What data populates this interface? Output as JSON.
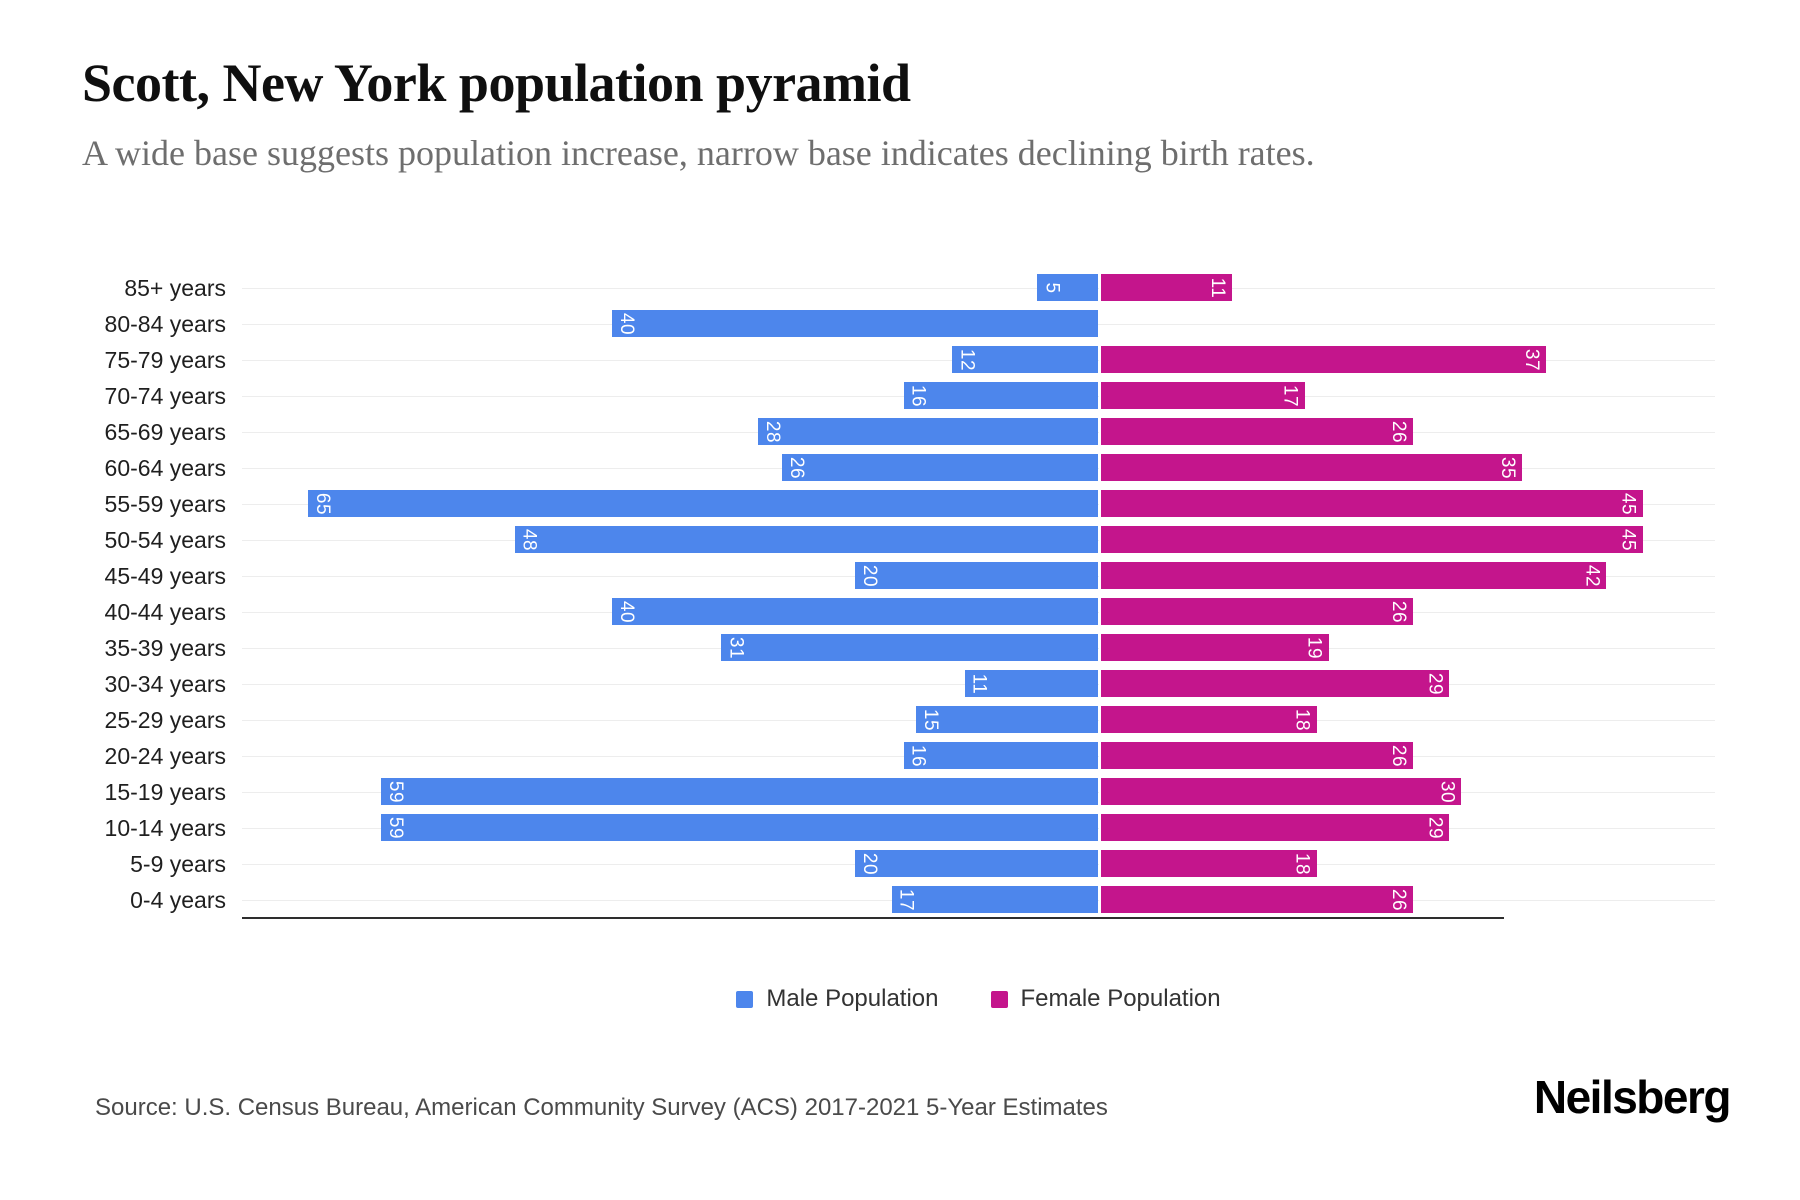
{
  "header": {
    "title": "Scott, New York population pyramid",
    "subtitle": "A wide base suggests population increase, narrow base indicates declining birth rates."
  },
  "colors": {
    "male": "#4d86ec",
    "female": "#c4158c",
    "grid": "#ededed",
    "axis": "#2e2e2e"
  },
  "chart_data": {
    "type": "bar",
    "orientation": "population-pyramid-horizontal",
    "title": "Scott, New York population pyramid",
    "categories": [
      "85+ years",
      "80-84 years",
      "75-79 years",
      "70-74 years",
      "65-69 years",
      "60-64 years",
      "55-59 years",
      "50-54 years",
      "45-49 years",
      "40-44 years",
      "35-39 years",
      "30-34 years",
      "25-29 years",
      "20-24 years",
      "15-19 years",
      "10-14 years",
      "5-9 years",
      "0-4 years"
    ],
    "series": [
      {
        "name": "Male Population",
        "color": "#4d86ec",
        "values": [
          5,
          40,
          12,
          16,
          28,
          26,
          65,
          48,
          20,
          40,
          31,
          11,
          15,
          16,
          59,
          59,
          20,
          17
        ]
      },
      {
        "name": "Female Population",
        "color": "#c4158c",
        "values": [
          11,
          0,
          37,
          17,
          26,
          35,
          45,
          45,
          42,
          26,
          19,
          29,
          18,
          26,
          30,
          29,
          18,
          26
        ]
      }
    ],
    "male_axis_max": 70.5,
    "female_axis_max": 51,
    "grid": true,
    "legend_position": "bottom",
    "value_labels": "inside-bar-ends, rotated 90deg, white"
  },
  "legend": {
    "items": [
      {
        "label": "Male Population",
        "color": "#4d86ec"
      },
      {
        "label": "Female Population",
        "color": "#c4158c"
      }
    ]
  },
  "footer": {
    "source": "Source: U.S. Census Bureau, American Community Survey (ACS) 2017-2021 5-Year Estimates",
    "brand": "Neilsberg"
  }
}
